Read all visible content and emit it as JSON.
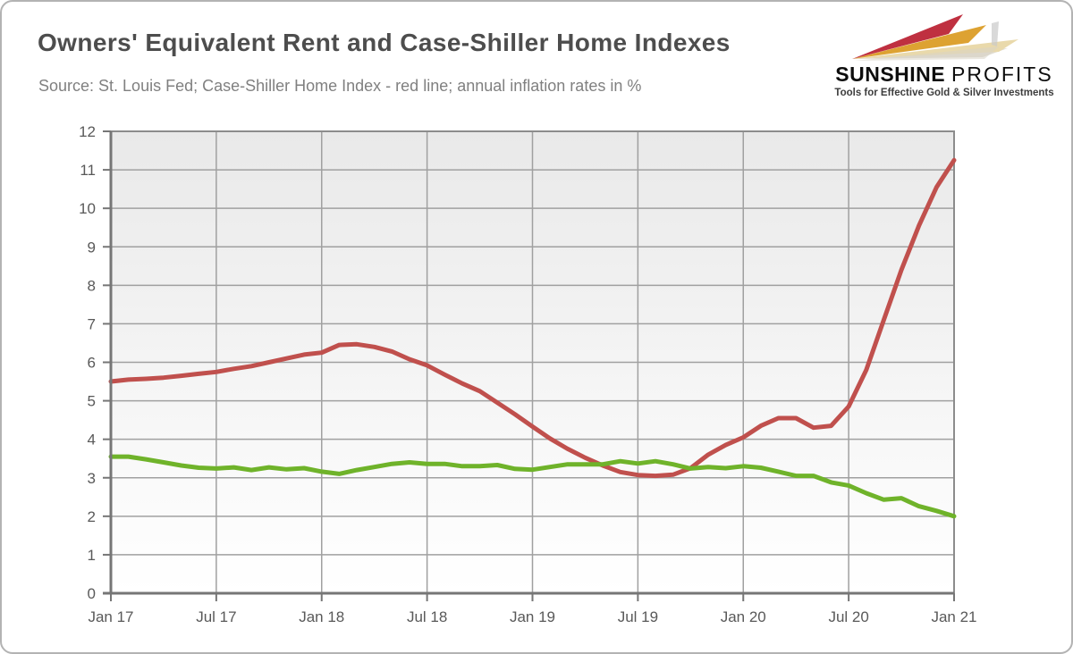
{
  "header": {
    "title": "Owners' Equivalent Rent and Case-Shiller Home Indexes",
    "subtitle": "Source: St. Louis Fed; Case-Shiller Home Index - red line; annual inflation rates in %"
  },
  "logo": {
    "name_primary": "SUNSHINE",
    "name_secondary": "PROFITS",
    "tagline": "Tools for Effective Gold & Silver Investments",
    "colors": {
      "red": "#bf3040",
      "gold": "#dda232",
      "sand": "#e9d9ab",
      "shadow": "#d8d3c6"
    }
  },
  "chart_data": {
    "type": "line",
    "title": "Owners' Equivalent Rent and Case-Shiller Home Indexes",
    "x_unit": "month",
    "x_range": [
      "Jan 2017",
      "Jan 2021"
    ],
    "x_tick_labels": [
      "Jan 17",
      "Jul 17",
      "Jan 18",
      "Jul 18",
      "Jan 19",
      "Jul 19",
      "Jan 20",
      "Jul 20",
      "Jan 21"
    ],
    "ylim": [
      0,
      12
    ],
    "y_ticks": [
      0,
      1,
      2,
      3,
      4,
      5,
      6,
      7,
      8,
      9,
      10,
      11,
      12
    ],
    "grid": true,
    "legend_position": "none",
    "colors": {
      "grid": "#a0a0a0",
      "border": "#8c8c8c",
      "axis": "#767676",
      "label": "#595959"
    },
    "series": [
      {
        "key": "case-shiller",
        "name": "Case-Shiller Home Index (annual inflation rate, %)",
        "color": "#c0504d",
        "values": [
          5.5,
          5.55,
          5.57,
          5.6,
          5.65,
          5.7,
          5.75,
          5.83,
          5.9,
          6.0,
          6.1,
          6.2,
          6.25,
          6.45,
          6.47,
          6.4,
          6.28,
          6.08,
          5.92,
          5.68,
          5.45,
          5.25,
          4.95,
          4.65,
          4.33,
          4.02,
          3.75,
          3.52,
          3.32,
          3.15,
          3.07,
          3.05,
          3.08,
          3.25,
          3.6,
          3.85,
          4.05,
          4.35,
          4.55,
          4.55,
          4.3,
          4.35,
          4.85,
          5.8,
          7.1,
          8.4,
          9.55,
          10.55,
          11.25
        ]
      },
      {
        "key": "oer",
        "name": "Owners' Equivalent Rent (annual inflation rate, %)",
        "color": "#6fb32a",
        "values": [
          3.55,
          3.55,
          3.48,
          3.4,
          3.32,
          3.26,
          3.24,
          3.27,
          3.2,
          3.27,
          3.22,
          3.25,
          3.16,
          3.1,
          3.2,
          3.28,
          3.36,
          3.4,
          3.36,
          3.36,
          3.3,
          3.3,
          3.33,
          3.23,
          3.21,
          3.28,
          3.35,
          3.35,
          3.35,
          3.43,
          3.37,
          3.43,
          3.35,
          3.24,
          3.28,
          3.25,
          3.3,
          3.26,
          3.16,
          3.05,
          3.05,
          2.88,
          2.8,
          2.6,
          2.43,
          2.47,
          2.26,
          2.14,
          2.0
        ]
      }
    ]
  }
}
